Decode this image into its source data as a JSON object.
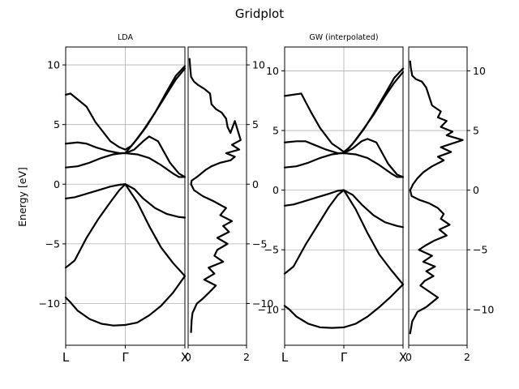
{
  "figure": {
    "title": "Gridplot"
  },
  "chart_data": [
    {
      "type": "line",
      "title": "LDA",
      "role": "band-structure",
      "ylabel": "Energy [eV]",
      "ylim": [
        -13.5,
        11.5
      ],
      "yticks": [
        -10,
        -5,
        0,
        5,
        10
      ],
      "yticks_side": "left",
      "xlim": [
        0,
        2
      ],
      "xticks": [
        {
          "x": 0,
          "label": "L"
        },
        {
          "x": 1,
          "label": "Γ"
        },
        {
          "x": 2,
          "label": "X"
        }
      ],
      "grid": true,
      "series": [
        {
          "x": [
            0,
            0.08,
            0.2,
            0.4,
            0.6,
            0.8,
            1.0
          ],
          "y": [
            -9.5,
            -9.9,
            -10.6,
            -11.3,
            -11.7,
            -11.85,
            -11.8
          ]
        },
        {
          "x": [
            1.0,
            1.2,
            1.4,
            1.6,
            1.8,
            2.0
          ],
          "y": [
            -11.8,
            -11.6,
            -11.0,
            -10.2,
            -9.1,
            -7.7
          ]
        },
        {
          "x": [
            0,
            0.15,
            0.35,
            0.55,
            0.75,
            0.9,
            1.0
          ],
          "y": [
            -7.0,
            -6.4,
            -4.5,
            -2.9,
            -1.5,
            -0.5,
            0.0
          ]
        },
        {
          "x": [
            0,
            0.15,
            0.35,
            0.55,
            0.75,
            0.9,
            1.0
          ],
          "y": [
            -1.2,
            -1.1,
            -0.8,
            -0.5,
            -0.2,
            -0.05,
            0.0
          ]
        },
        {
          "x": [
            1.0,
            1.2,
            1.4,
            1.6,
            1.8,
            2.0
          ],
          "y": [
            0.0,
            -1.5,
            -3.5,
            -5.3,
            -6.6,
            -7.7
          ]
        },
        {
          "x": [
            1.0,
            1.15,
            1.3,
            1.5,
            1.7,
            1.9,
            2.0
          ],
          "y": [
            0.0,
            -0.4,
            -1.2,
            -2.0,
            -2.5,
            -2.75,
            -2.8
          ]
        },
        {
          "x": [
            0,
            0.2,
            0.4,
            0.6,
            0.8,
            0.95,
            1.0
          ],
          "y": [
            1.4,
            1.5,
            1.8,
            2.2,
            2.5,
            2.6,
            2.6
          ]
        },
        {
          "x": [
            0,
            0.2,
            0.35,
            0.5,
            0.7,
            0.9,
            1.0
          ],
          "y": [
            3.4,
            3.5,
            3.4,
            3.1,
            2.8,
            2.6,
            2.6
          ]
        },
        {
          "x": [
            1.0,
            1.2,
            1.4,
            1.6,
            1.8,
            1.9,
            2.0
          ],
          "y": [
            2.6,
            2.5,
            2.2,
            1.6,
            0.9,
            0.6,
            0.6
          ]
        },
        {
          "x": [
            0,
            0.08,
            0.35,
            0.5,
            0.75,
            0.9,
            1.0
          ],
          "y": [
            7.5,
            7.6,
            6.5,
            5.2,
            3.6,
            3.1,
            2.9
          ]
        },
        {
          "x": [
            1.0,
            1.15,
            1.3,
            1.4,
            1.55,
            1.75,
            1.9,
            2.0
          ],
          "y": [
            2.6,
            2.9,
            3.6,
            4.0,
            3.6,
            1.8,
            0.9,
            0.6
          ]
        },
        {
          "x": [
            1.0,
            1.1,
            1.2,
            1.35,
            1.5,
            1.7,
            1.85,
            2.0
          ],
          "y": [
            2.9,
            3.2,
            3.8,
            4.8,
            6.0,
            7.8,
            9.1,
            9.9
          ]
        },
        {
          "x": [
            1.0,
            1.15,
            1.3,
            1.5,
            1.7,
            1.85,
            2.0
          ],
          "y": [
            2.6,
            3.5,
            4.5,
            6.0,
            7.6,
            8.8,
            9.7
          ]
        }
      ]
    },
    {
      "type": "line",
      "title": "",
      "role": "density-of-states",
      "ylim": [
        -13.5,
        11.5
      ],
      "yticks": [
        -10,
        -5,
        0,
        5,
        10
      ],
      "yticks_side": "right",
      "xlim": [
        0,
        2
      ],
      "xticks": [
        {
          "x": 0,
          "label": "0"
        },
        {
          "x": 2,
          "label": "2"
        }
      ],
      "grid": true,
      "series": [
        {
          "x": [
            0.05,
            0.07,
            0.1,
            0.2,
            0.35,
            0.55,
            0.75,
            0.8,
            0.95,
            1.15,
            1.3,
            1.35,
            1.45,
            1.6,
            1.8,
            1.5,
            1.75,
            1.3,
            1.6,
            1.45,
            1.1,
            0.8,
            0.6,
            0.3,
            0.12,
            0.1,
            0.2,
            0.5,
            0.85,
            1.3,
            1.1,
            1.5,
            1.2,
            1.4,
            1.0,
            1.35,
            1.0,
            0.9,
            1.2,
            0.7,
            0.9,
            0.55,
            0.95,
            0.75,
            0.5,
            0.3,
            0.15,
            0.12,
            0.1
          ],
          "y": [
            10.5,
            9.8,
            9.0,
            8.6,
            8.3,
            8.0,
            7.6,
            6.7,
            6.3,
            6.0,
            5.5,
            4.8,
            4.3,
            5.3,
            3.7,
            3.3,
            2.9,
            2.6,
            2.3,
            2.0,
            1.8,
            1.5,
            1.2,
            0.6,
            0.3,
            0.0,
            -0.5,
            -1.0,
            -1.4,
            -2.0,
            -2.6,
            -3.1,
            -3.5,
            -4.0,
            -4.5,
            -5.0,
            -5.5,
            -6.0,
            -6.5,
            -7.0,
            -7.5,
            -8.0,
            -8.5,
            -9.0,
            -9.6,
            -10.0,
            -10.8,
            -11.4,
            -12.4
          ]
        }
      ]
    },
    {
      "type": "line",
      "title": "GW (interpolated)",
      "role": "band-structure",
      "ylim": [
        -13.0,
        12.0
      ],
      "yticks": [
        -10,
        -5,
        0,
        5,
        10
      ],
      "yticks_side": "left",
      "xlim": [
        0,
        2
      ],
      "xticks": [
        {
          "x": 0,
          "label": "L"
        },
        {
          "x": 1,
          "label": "Γ"
        },
        {
          "x": 2,
          "label": "X"
        }
      ],
      "grid": true,
      "series": [
        {
          "x": [
            0,
            0.08,
            0.2,
            0.4,
            0.6,
            0.8,
            1.0
          ],
          "y": [
            -9.7,
            -10.0,
            -10.6,
            -11.2,
            -11.5,
            -11.55,
            -11.5
          ]
        },
        {
          "x": [
            1.0,
            1.2,
            1.4,
            1.6,
            1.8,
            2.0
          ],
          "y": [
            -11.5,
            -11.2,
            -10.6,
            -9.8,
            -8.9,
            -7.9
          ]
        },
        {
          "x": [
            0,
            0.15,
            0.35,
            0.55,
            0.75,
            0.9,
            1.0
          ],
          "y": [
            -7.0,
            -6.4,
            -4.6,
            -3.0,
            -1.4,
            -0.4,
            0.0
          ]
        },
        {
          "x": [
            0,
            0.15,
            0.35,
            0.55,
            0.75,
            0.9,
            1.0
          ],
          "y": [
            -1.3,
            -1.2,
            -0.9,
            -0.6,
            -0.3,
            -0.05,
            0.0
          ]
        },
        {
          "x": [
            1.0,
            1.2,
            1.4,
            1.6,
            1.8,
            2.0
          ],
          "y": [
            0.0,
            -1.6,
            -3.6,
            -5.4,
            -6.7,
            -7.9
          ]
        },
        {
          "x": [
            1.0,
            1.15,
            1.3,
            1.5,
            1.7,
            1.9,
            2.0
          ],
          "y": [
            0.0,
            -0.4,
            -1.2,
            -2.1,
            -2.7,
            -3.0,
            -3.1
          ]
        },
        {
          "x": [
            0,
            0.2,
            0.4,
            0.6,
            0.8,
            0.95,
            1.0
          ],
          "y": [
            1.9,
            2.0,
            2.3,
            2.7,
            3.0,
            3.1,
            3.1
          ]
        },
        {
          "x": [
            0,
            0.2,
            0.35,
            0.5,
            0.7,
            0.9,
            1.0
          ],
          "y": [
            4.0,
            4.1,
            4.1,
            3.8,
            3.4,
            3.1,
            3.1
          ]
        },
        {
          "x": [
            1.0,
            1.2,
            1.4,
            1.6,
            1.8,
            1.9,
            2.0
          ],
          "y": [
            3.1,
            3.0,
            2.7,
            2.1,
            1.4,
            1.1,
            1.1
          ]
        },
        {
          "x": [
            0,
            0.28,
            0.45,
            0.6,
            0.8,
            0.92,
            1.0
          ],
          "y": [
            7.9,
            8.1,
            6.5,
            5.2,
            3.9,
            3.5,
            3.2
          ]
        },
        {
          "x": [
            1.0,
            1.15,
            1.3,
            1.4,
            1.55,
            1.75,
            1.9,
            2.0
          ],
          "y": [
            3.1,
            3.5,
            4.1,
            4.3,
            4.0,
            2.2,
            1.3,
            1.1
          ]
        },
        {
          "x": [
            1.0,
            1.1,
            1.2,
            1.35,
            1.5,
            1.7,
            1.85,
            2.0
          ],
          "y": [
            3.2,
            3.6,
            4.2,
            5.2,
            6.4,
            8.1,
            9.4,
            10.2
          ]
        },
        {
          "x": [
            1.0,
            1.15,
            1.3,
            1.5,
            1.7,
            1.85,
            2.0
          ],
          "y": [
            3.1,
            3.9,
            4.9,
            6.3,
            7.9,
            9.0,
            9.9
          ]
        }
      ]
    },
    {
      "type": "line",
      "title": "",
      "role": "density-of-states",
      "ylim": [
        -13.0,
        12.0
      ],
      "yticks": [
        -10,
        -5,
        0,
        5,
        10
      ],
      "yticks_side": "right",
      "xlim": [
        0,
        2
      ],
      "xticks": [
        {
          "x": 0,
          "label": "0"
        },
        {
          "x": 2,
          "label": "2"
        }
      ],
      "grid": true,
      "series": [
        {
          "x": [
            0.05,
            0.07,
            0.12,
            0.25,
            0.45,
            0.6,
            0.8,
            1.1,
            1.0,
            1.3,
            1.1,
            1.5,
            1.3,
            1.85,
            1.1,
            1.45,
            1.0,
            1.2,
            0.8,
            0.5,
            0.3,
            0.15,
            0.05,
            0.1,
            0.35,
            0.7,
            1.0,
            1.2,
            1.1,
            1.4,
            1.05,
            1.3,
            0.9,
            0.6,
            0.35,
            0.8,
            0.5,
            0.9,
            0.6,
            0.85,
            0.55,
            0.4,
            1.0,
            0.6,
            0.3,
            0.12,
            0.05
          ],
          "y": [
            10.8,
            10.3,
            9.6,
            9.3,
            9.1,
            8.6,
            7.1,
            6.6,
            6.1,
            5.8,
            5.3,
            4.9,
            4.6,
            4.2,
            3.6,
            3.2,
            2.8,
            2.5,
            2.0,
            1.5,
            1.0,
            0.5,
            0.0,
            -0.5,
            -0.8,
            -1.1,
            -1.5,
            -2.0,
            -2.4,
            -2.9,
            -3.3,
            -3.8,
            -4.2,
            -4.6,
            -5.0,
            -5.5,
            -6.0,
            -6.4,
            -6.8,
            -7.2,
            -7.6,
            -8.0,
            -9.0,
            -9.8,
            -10.2,
            -11.0,
            -12.0
          ]
        }
      ]
    }
  ]
}
